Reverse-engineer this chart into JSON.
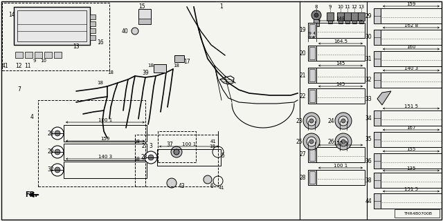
{
  "bg_color": "#f5f5f0",
  "diagram_id": "THR4B0700B",
  "figsize": [
    6.4,
    3.2
  ],
  "dpi": 100
}
